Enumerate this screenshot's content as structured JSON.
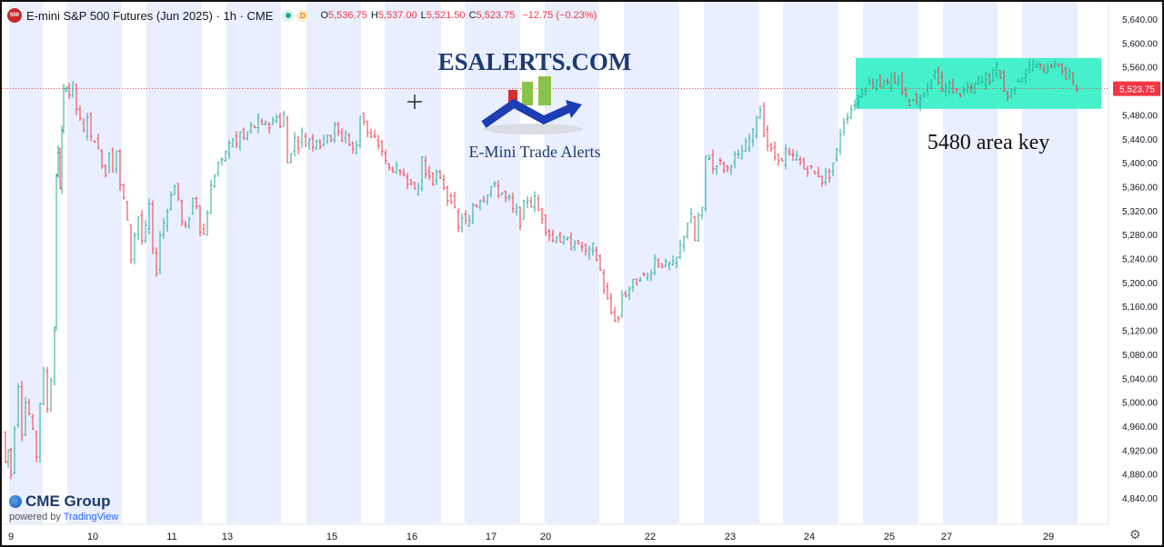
{
  "header": {
    "logo_text": "500",
    "symbol": "E-mini S&P 500 Futures (Jun 2025) · 1h · CME",
    "dot_label": "D",
    "open_label": "O",
    "open": "5,536.75",
    "high_label": "H",
    "high": "5,537.00",
    "low_label": "L",
    "low": "5,521.50",
    "close_label": "C",
    "close": "5,523.75",
    "change": "−12.75 (−0.23%)"
  },
  "watermark": {
    "brand": "ESALERTS.COM",
    "tagline": "E-Mini Trade Alerts"
  },
  "annotation": {
    "text": "5480 area key",
    "box_color": "#33f0c6"
  },
  "footer": {
    "cme": "CME Group",
    "powered": "powered by",
    "tv": "TradingView"
  },
  "icons": {
    "cme_logo": "globe-icon",
    "settings": "gear-icon",
    "crosshair": "crosshair-icon"
  },
  "colors": {
    "up": "#22ab94",
    "down": "#f23645",
    "session_band": "#e9efff",
    "price_label_bg": "#f23645",
    "brand_text": "#1f3a73"
  },
  "chart_data": {
    "type": "ohlc",
    "title": "E-mini S&P 500 Futures (Jun 2025) · 1h · CME",
    "ylim": [
      4820,
      5650
    ],
    "y_ticks": [
      5640,
      5600,
      5560,
      5520,
      5480,
      5440,
      5400,
      5360,
      5320,
      5280,
      5240,
      5200,
      5160,
      5120,
      5080,
      5040,
      5000,
      4960,
      4920,
      4880,
      4840
    ],
    "y_tick_labels": [
      "5,640.00",
      "5,600.00",
      "5,560.00",
      "5,520.00",
      "5,480.00",
      "5,440.00",
      "5,400.00",
      "5,360.00",
      "5,320.00",
      "5,280.00",
      "5,240.00",
      "5,200.00",
      "5,160.00",
      "5,120.00",
      "5,080.00",
      "5,040.00",
      "5,000.00",
      "4,960.00",
      "4,920.00",
      "4,880.00",
      "4,840.00"
    ],
    "x_labels": [
      "9",
      "10",
      "11",
      "13",
      "15",
      "16",
      "17",
      "20",
      "22",
      "23",
      "24",
      "25",
      "27",
      "29"
    ],
    "last_price": 5523.75,
    "last_price_label": "5,523.75",
    "highlight_zone": [
      5490,
      5575
    ],
    "path": [
      [
        0,
        4950
      ],
      [
        3,
        4900
      ],
      [
        6,
        4920
      ],
      [
        10,
        4880
      ],
      [
        14,
        4960
      ],
      [
        18,
        5030
      ],
      [
        22,
        4950
      ],
      [
        26,
        5000
      ],
      [
        30,
        4980
      ],
      [
        34,
        4950
      ],
      [
        38,
        4910
      ],
      [
        42,
        5000
      ],
      [
        46,
        5050
      ],
      [
        50,
        4990
      ],
      [
        54,
        5040
      ],
      [
        56,
        5120
      ],
      [
        58,
        5380
      ],
      [
        60,
        5420
      ],
      [
        62,
        5360
      ],
      [
        64,
        5450
      ],
      [
        67,
        5520
      ],
      [
        70,
        5530
      ],
      [
        74,
        5515
      ],
      [
        78,
        5530
      ],
      [
        82,
        5490
      ],
      [
        86,
        5470
      ],
      [
        90,
        5450
      ],
      [
        94,
        5480
      ],
      [
        98,
        5440
      ],
      [
        102,
        5440
      ],
      [
        106,
        5420
      ],
      [
        110,
        5400
      ],
      [
        114,
        5380
      ],
      [
        118,
        5420
      ],
      [
        122,
        5390
      ],
      [
        126,
        5420
      ],
      [
        130,
        5360
      ],
      [
        134,
        5340
      ],
      [
        138,
        5300
      ],
      [
        142,
        5240
      ],
      [
        146,
        5280
      ],
      [
        150,
        5310
      ],
      [
        154,
        5270
      ],
      [
        158,
        5290
      ],
      [
        162,
        5330
      ],
      [
        166,
        5250
      ],
      [
        170,
        5220
      ],
      [
        174,
        5280
      ],
      [
        178,
        5300
      ],
      [
        182,
        5320
      ],
      [
        186,
        5350
      ],
      [
        190,
        5360
      ],
      [
        194,
        5340
      ],
      [
        198,
        5300
      ],
      [
        202,
        5290
      ],
      [
        206,
        5310
      ],
      [
        210,
        5340
      ],
      [
        214,
        5330
      ],
      [
        218,
        5290
      ],
      [
        222,
        5280
      ],
      [
        226,
        5320
      ],
      [
        230,
        5360
      ],
      [
        234,
        5380
      ],
      [
        238,
        5400
      ],
      [
        242,
        5400
      ],
      [
        246,
        5420
      ],
      [
        250,
        5430
      ],
      [
        254,
        5440
      ],
      [
        258,
        5430
      ],
      [
        262,
        5450
      ],
      [
        266,
        5440
      ],
      [
        270,
        5450
      ],
      [
        274,
        5460
      ],
      [
        278,
        5460
      ],
      [
        282,
        5470
      ],
      [
        286,
        5460
      ],
      [
        290,
        5470
      ],
      [
        294,
        5460
      ],
      [
        298,
        5470
      ],
      [
        302,
        5480
      ],
      [
        306,
        5460
      ],
      [
        310,
        5480
      ],
      [
        314,
        5400
      ],
      [
        318,
        5420
      ],
      [
        322,
        5440
      ],
      [
        326,
        5430
      ],
      [
        330,
        5450
      ],
      [
        334,
        5430
      ],
      [
        338,
        5440
      ],
      [
        342,
        5430
      ],
      [
        346,
        5440
      ],
      [
        350,
        5430
      ],
      [
        354,
        5440
      ],
      [
        358,
        5450
      ],
      [
        362,
        5440
      ],
      [
        366,
        5460
      ],
      [
        370,
        5450
      ],
      [
        374,
        5440
      ],
      [
        378,
        5450
      ],
      [
        382,
        5430
      ],
      [
        386,
        5420
      ],
      [
        390,
        5430
      ],
      [
        394,
        5480
      ],
      [
        398,
        5470
      ],
      [
        402,
        5450
      ],
      [
        406,
        5440
      ],
      [
        410,
        5440
      ],
      [
        414,
        5430
      ],
      [
        418,
        5420
      ],
      [
        422,
        5400
      ],
      [
        426,
        5390
      ],
      [
        430,
        5390
      ],
      [
        434,
        5390
      ],
      [
        438,
        5380
      ],
      [
        442,
        5380
      ],
      [
        446,
        5370
      ],
      [
        450,
        5370
      ],
      [
        454,
        5350
      ],
      [
        458,
        5360
      ],
      [
        462,
        5410
      ],
      [
        466,
        5380
      ],
      [
        470,
        5380
      ],
      [
        474,
        5370
      ],
      [
        478,
        5380
      ],
      [
        482,
        5370
      ],
      [
        486,
        5360
      ],
      [
        490,
        5340
      ],
      [
        494,
        5340
      ],
      [
        498,
        5320
      ],
      [
        502,
        5290
      ],
      [
        506,
        5310
      ],
      [
        510,
        5300
      ],
      [
        514,
        5300
      ],
      [
        518,
        5330
      ],
      [
        522,
        5330
      ],
      [
        526,
        5340
      ],
      [
        530,
        5340
      ],
      [
        534,
        5350
      ],
      [
        538,
        5360
      ],
      [
        542,
        5360
      ],
      [
        546,
        5350
      ],
      [
        550,
        5350
      ],
      [
        554,
        5340
      ],
      [
        558,
        5340
      ],
      [
        562,
        5320
      ],
      [
        566,
        5320
      ],
      [
        570,
        5300
      ],
      [
        574,
        5330
      ],
      [
        578,
        5340
      ],
      [
        582,
        5330
      ],
      [
        586,
        5340
      ],
      [
        590,
        5320
      ],
      [
        594,
        5310
      ],
      [
        598,
        5290
      ],
      [
        602,
        5280
      ],
      [
        606,
        5270
      ],
      [
        610,
        5280
      ],
      [
        614,
        5270
      ],
      [
        618,
        5270
      ],
      [
        622,
        5270
      ],
      [
        626,
        5260
      ],
      [
        630,
        5270
      ],
      [
        634,
        5260
      ],
      [
        638,
        5260
      ],
      [
        642,
        5250
      ],
      [
        646,
        5250
      ],
      [
        650,
        5260
      ],
      [
        654,
        5240
      ],
      [
        658,
        5220
      ],
      [
        662,
        5190
      ],
      [
        666,
        5170
      ],
      [
        670,
        5150
      ],
      [
        674,
        5140
      ],
      [
        678,
        5140
      ],
      [
        682,
        5180
      ],
      [
        686,
        5180
      ],
      [
        690,
        5190
      ],
      [
        694,
        5200
      ],
      [
        698,
        5200
      ],
      [
        702,
        5210
      ],
      [
        706,
        5210
      ],
      [
        710,
        5210
      ],
      [
        714,
        5220
      ],
      [
        718,
        5240
      ],
      [
        722,
        5230
      ],
      [
        726,
        5230
      ],
      [
        730,
        5230
      ],
      [
        734,
        5230
      ],
      [
        738,
        5230
      ],
      [
        742,
        5240
      ],
      [
        746,
        5260
      ],
      [
        750,
        5280
      ],
      [
        754,
        5300
      ],
      [
        758,
        5310
      ],
      [
        762,
        5270
      ],
      [
        766,
        5310
      ],
      [
        770,
        5320
      ],
      [
        774,
        5410
      ],
      [
        778,
        5410
      ],
      [
        782,
        5390
      ],
      [
        786,
        5400
      ],
      [
        790,
        5400
      ],
      [
        794,
        5390
      ],
      [
        798,
        5390
      ],
      [
        802,
        5400
      ],
      [
        806,
        5410
      ],
      [
        810,
        5410
      ],
      [
        814,
        5420
      ],
      [
        818,
        5430
      ],
      [
        822,
        5440
      ],
      [
        826,
        5450
      ],
      [
        830,
        5480
      ],
      [
        834,
        5490
      ],
      [
        838,
        5450
      ],
      [
        842,
        5430
      ],
      [
        846,
        5420
      ],
      [
        850,
        5410
      ],
      [
        854,
        5410
      ],
      [
        858,
        5400
      ],
      [
        862,
        5420
      ],
      [
        866,
        5410
      ],
      [
        870,
        5410
      ],
      [
        874,
        5410
      ],
      [
        878,
        5400
      ],
      [
        882,
        5390
      ],
      [
        886,
        5390
      ],
      [
        890,
        5390
      ],
      [
        894,
        5380
      ],
      [
        898,
        5380
      ],
      [
        902,
        5370
      ],
      [
        906,
        5380
      ],
      [
        910,
        5380
      ],
      [
        914,
        5400
      ],
      [
        918,
        5420
      ],
      [
        922,
        5450
      ],
      [
        926,
        5470
      ],
      [
        930,
        5480
      ],
      [
        934,
        5490
      ],
      [
        938,
        5500
      ],
      [
        942,
        5510
      ],
      [
        946,
        5520
      ],
      [
        950,
        5530
      ],
      [
        954,
        5535
      ],
      [
        958,
        5530
      ],
      [
        962,
        5540
      ],
      [
        966,
        5530
      ],
      [
        970,
        5540
      ],
      [
        974,
        5530
      ],
      [
        978,
        5540
      ],
      [
        982,
        5530
      ],
      [
        986,
        5540
      ],
      [
        990,
        5520
      ],
      [
        994,
        5510
      ],
      [
        998,
        5500
      ],
      [
        1002,
        5510
      ],
      [
        1006,
        5500
      ],
      [
        1010,
        5510
      ],
      [
        1014,
        5520
      ],
      [
        1018,
        5530
      ],
      [
        1022,
        5540
      ],
      [
        1026,
        5550
      ],
      [
        1030,
        5540
      ],
      [
        1034,
        5520
      ],
      [
        1038,
        5525
      ],
      [
        1042,
        5530
      ],
      [
        1046,
        5520
      ],
      [
        1050,
        5520
      ],
      [
        1054,
        5515
      ],
      [
        1058,
        5520
      ],
      [
        1062,
        5525
      ],
      [
        1066,
        5520
      ],
      [
        1070,
        5530
      ],
      [
        1074,
        5540
      ],
      [
        1078,
        5535
      ],
      [
        1082,
        5545
      ],
      [
        1086,
        5540
      ],
      [
        1090,
        5550
      ],
      [
        1094,
        5560
      ],
      [
        1098,
        5545
      ],
      [
        1102,
        5520
      ],
      [
        1106,
        5510
      ],
      [
        1110,
        5520
      ],
      [
        1114,
        5530
      ],
      [
        1118,
        5540
      ],
      [
        1122,
        5545
      ],
      [
        1126,
        5550
      ],
      [
        1130,
        5560
      ],
      [
        1134,
        5565
      ],
      [
        1138,
        5560
      ],
      [
        1142,
        5560
      ],
      [
        1146,
        5555
      ],
      [
        1150,
        5560
      ],
      [
        1154,
        5565
      ],
      [
        1158,
        5560
      ],
      [
        1162,
        5565
      ],
      [
        1166,
        5555
      ],
      [
        1170,
        5540
      ],
      [
        1174,
        5550
      ],
      [
        1178,
        5530
      ],
      [
        1182,
        5524
      ]
    ]
  }
}
